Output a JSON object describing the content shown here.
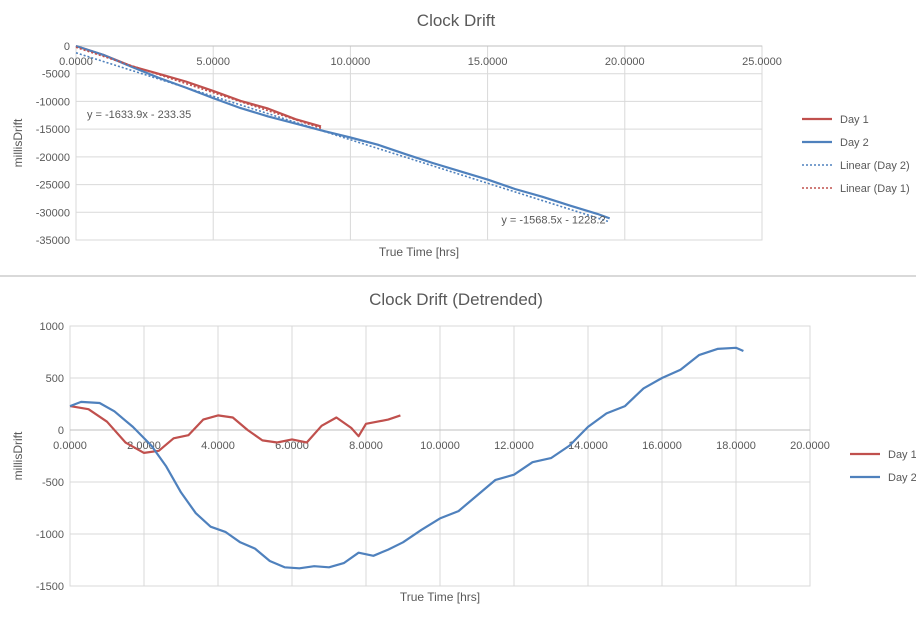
{
  "chart_data": [
    {
      "type": "line",
      "title": "Clock Drift",
      "xlabel": "True Time [hrs]",
      "ylabel": "millisDrift",
      "xlim": [
        0,
        25
      ],
      "ylim": [
        -35000,
        0
      ],
      "xticks": [
        "0.0000",
        "5.0000",
        "10.0000",
        "15.0000",
        "20.0000",
        "25.0000"
      ],
      "yticks": [
        "0",
        "-5000",
        "-10000",
        "-15000",
        "-20000",
        "-25000",
        "-30000",
        "-35000"
      ],
      "grid": true,
      "legend_position": "right",
      "series": [
        {
          "name": "Day 1",
          "color": "#c0504d",
          "style": "solid",
          "x": [
            0,
            1,
            2,
            3,
            4,
            5,
            6,
            7,
            8,
            8.93
          ],
          "y": [
            0,
            -1600,
            -3600,
            -5000,
            -6400,
            -8100,
            -9900,
            -11300,
            -13200,
            -14500
          ]
        },
        {
          "name": "Day 2",
          "color": "#4f81bd",
          "style": "solid",
          "x": [
            0,
            1,
            2,
            3,
            4,
            5,
            6,
            7,
            8,
            9,
            10,
            11,
            12,
            13,
            14,
            15,
            16,
            17,
            18,
            19,
            19.45
          ],
          "y": [
            0,
            -1600,
            -3700,
            -5700,
            -7500,
            -9400,
            -11200,
            -12700,
            -14000,
            -15300,
            -16500,
            -17800,
            -19500,
            -21100,
            -22600,
            -24100,
            -25800,
            -27200,
            -28800,
            -30300,
            -31100
          ]
        },
        {
          "name": "Linear (Day 2)",
          "color": "#4f81bd",
          "style": "dotted",
          "x": [
            0,
            19.45
          ],
          "y": [
            -1228.2,
            -31734.5
          ]
        },
        {
          "name": "Linear (Day 1)",
          "color": "#c0504d",
          "style": "dotted",
          "x": [
            0,
            8.93
          ],
          "y": [
            -233.35,
            -14824.1
          ]
        }
      ],
      "annotations": [
        {
          "text": "y = -1633.9x - 233.35",
          "x": 0.4,
          "y": -13000
        },
        {
          "text": "y = -1568.5x - 1228.2",
          "x": 15.5,
          "y": -32000
        }
      ]
    },
    {
      "type": "line",
      "title": "Clock Drift (Detrended)",
      "xlabel": "True Time [hrs]",
      "ylabel": "millisDrift",
      "xlim": [
        0,
        20
      ],
      "ylim": [
        -1500,
        1000
      ],
      "xticks": [
        "0.0000",
        "2.0000",
        "4.0000",
        "6.0000",
        "8.0000",
        "10.0000",
        "12.0000",
        "14.0000",
        "16.0000",
        "18.0000",
        "20.0000"
      ],
      "yticks": [
        "1000",
        "500",
        "0",
        "-500",
        "-1000",
        "-1500"
      ],
      "grid": true,
      "legend_position": "right",
      "series": [
        {
          "name": "Day 1",
          "color": "#c0504d",
          "style": "solid",
          "x": [
            0,
            0.5,
            1,
            1.5,
            2,
            2.4,
            2.8,
            3.2,
            3.6,
            4,
            4.4,
            4.8,
            5.2,
            5.6,
            6,
            6.4,
            6.8,
            7.2,
            7.6,
            7.8,
            8,
            8.3,
            8.6,
            8.93
          ],
          "y": [
            230,
            200,
            80,
            -120,
            -220,
            -200,
            -80,
            -50,
            100,
            140,
            120,
            0,
            -100,
            -120,
            -90,
            -120,
            40,
            120,
            20,
            -60,
            60,
            80,
            100,
            140
          ]
        },
        {
          "name": "Day 2",
          "color": "#4f81bd",
          "style": "solid",
          "x": [
            0,
            0.3,
            0.8,
            1.2,
            1.7,
            2.2,
            2.6,
            3,
            3.4,
            3.8,
            4.2,
            4.6,
            5,
            5.4,
            5.8,
            6.2,
            6.6,
            7,
            7.4,
            7.8,
            8.2,
            8.6,
            9,
            9.5,
            10,
            10.5,
            11,
            11.5,
            12,
            12.5,
            13,
            13.5,
            14,
            14.5,
            15,
            15.5,
            16,
            16.5,
            17,
            17.5,
            18,
            18.2
          ],
          "y": [
            230,
            270,
            260,
            180,
            30,
            -150,
            -350,
            -600,
            -800,
            -930,
            -980,
            -1080,
            -1140,
            -1260,
            -1320,
            -1330,
            -1310,
            -1320,
            -1280,
            -1180,
            -1210,
            -1150,
            -1080,
            -960,
            -850,
            -780,
            -630,
            -480,
            -430,
            -310,
            -270,
            -150,
            30,
            160,
            230,
            400,
            500,
            580,
            720,
            780,
            790,
            760
          ]
        }
      ]
    }
  ]
}
